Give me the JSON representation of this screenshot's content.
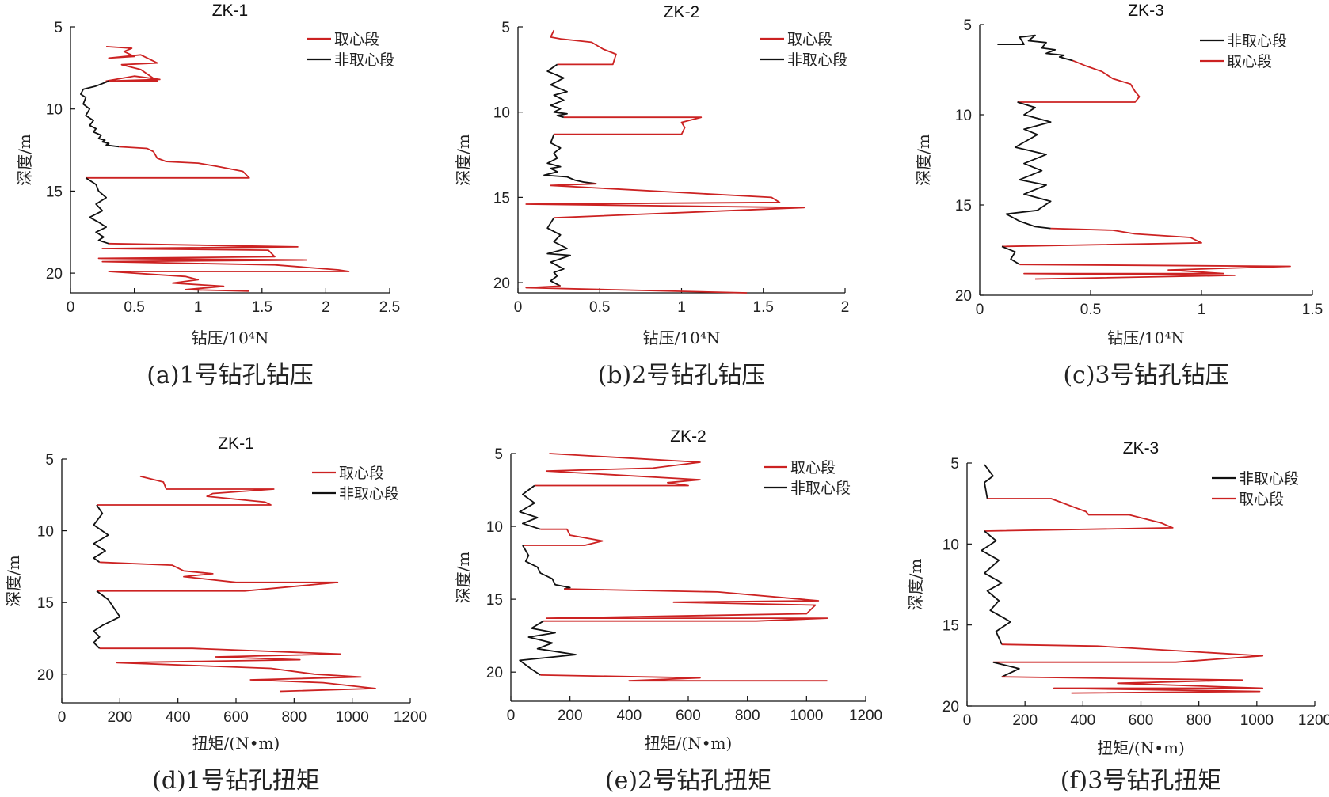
{
  "chart_data": [
    {
      "type": "line",
      "title": "ZK-1",
      "xlabel": "钻压/10⁴N",
      "ylabel": "深度/m",
      "caption": "(a)1号钻孔钻压",
      "xlim": [
        0,
        2.5
      ],
      "ylim": [
        5,
        21.2
      ],
      "xticks": [
        "0",
        "0.5",
        "1",
        "1.5",
        "2",
        "2.5"
      ],
      "yticks": [
        "5",
        "10",
        "15",
        "20"
      ],
      "legend": [
        "取心段",
        "非取心段"
      ],
      "series": [
        {
          "name": "取心段",
          "color": "#cc2222",
          "x": [
            0.28,
            0.48,
            0.42,
            0.5,
            0.3,
            0.55,
            0.68,
            0.4,
            0.55,
            0.68,
            0.28,
            0.5,
            0.7,
            0.3
          ],
          "y": [
            6.2,
            6.3,
            6.5,
            6.8,
            6.9,
            6.7,
            7.2,
            7.3,
            7.6,
            8.3,
            8.3,
            8.0,
            8.2,
            8.3
          ]
        },
        {
          "name": "非取心段",
          "color": "#111111",
          "x": [
            0.3,
            0.2,
            0.1,
            0.08,
            0.12,
            0.1,
            0.15,
            0.12,
            0.18,
            0.15,
            0.2,
            0.18,
            0.24,
            0.22,
            0.27,
            0.25,
            0.3,
            0.28,
            0.38
          ],
          "y": [
            8.3,
            8.6,
            8.8,
            9.1,
            9.3,
            9.7,
            10.0,
            10.4,
            10.7,
            11.0,
            11.2,
            11.4,
            11.6,
            11.8,
            11.9,
            12.0,
            12.1,
            12.2,
            12.3
          ]
        },
        {
          "name": "取心段",
          "color": "#cc2222",
          "x": [
            0.38,
            0.6,
            0.65,
            0.68,
            0.75,
            1.0,
            1.15,
            1.35,
            1.4,
            0.12
          ],
          "y": [
            12.3,
            12.4,
            12.6,
            13.0,
            13.2,
            13.3,
            13.5,
            13.8,
            14.2,
            14.2
          ]
        },
        {
          "name": "非取心段",
          "color": "#111111",
          "x": [
            0.12,
            0.2,
            0.22,
            0.28,
            0.2,
            0.25,
            0.15,
            0.22,
            0.28,
            0.2,
            0.26,
            0.22,
            0.3
          ],
          "y": [
            14.2,
            14.6,
            15.0,
            15.4,
            15.8,
            16.2,
            16.6,
            16.9,
            17.2,
            17.5,
            17.8,
            18.0,
            18.2
          ]
        },
        {
          "name": "取心段",
          "color": "#cc2222",
          "x": [
            0.3,
            1.78,
            0.25,
            1.55,
            1.6,
            0.22,
            1.85,
            0.25,
            1.6,
            2.1,
            2.18,
            0.3,
            0.9,
            1.0,
            0.8,
            1.2,
            0.9,
            1.4
          ],
          "y": [
            18.2,
            18.4,
            18.5,
            18.6,
            19.0,
            19.1,
            19.2,
            19.3,
            19.5,
            19.8,
            19.9,
            19.9,
            20.2,
            20.4,
            20.6,
            20.8,
            21.0,
            21.1
          ]
        }
      ]
    },
    {
      "type": "line",
      "title": "ZK-2",
      "xlabel": "钻压/10⁴N",
      "ylabel": "深度/m",
      "caption": "(b)2号钻孔钻压",
      "xlim": [
        0,
        2
      ],
      "ylim": [
        5,
        20.6
      ],
      "xticks": [
        "0",
        "0.5",
        "1",
        "1.5",
        "2"
      ],
      "yticks": [
        "5",
        "10",
        "15",
        "20"
      ],
      "legend": [
        "取心段",
        "非取心段"
      ],
      "series": [
        {
          "name": "取心段",
          "color": "#cc2222",
          "x": [
            0.22,
            0.2,
            0.26,
            0.45,
            0.52,
            0.6,
            0.58,
            0.24
          ],
          "y": [
            5.2,
            5.6,
            5.7,
            5.9,
            6.3,
            6.6,
            7.2,
            7.2
          ]
        },
        {
          "name": "非取心段",
          "color": "#111111",
          "x": [
            0.24,
            0.18,
            0.28,
            0.2,
            0.3,
            0.22,
            0.28,
            0.2,
            0.26,
            0.22,
            0.3,
            0.24,
            0.28
          ],
          "y": [
            7.2,
            7.6,
            8.0,
            8.4,
            8.8,
            9.0,
            9.3,
            9.6,
            9.8,
            10.0,
            10.1,
            10.2,
            10.3
          ]
        },
        {
          "name": "取心段",
          "color": "#cc2222",
          "x": [
            0.28,
            1.12,
            1.0,
            1.02,
            1.0,
            0.22
          ],
          "y": [
            10.3,
            10.3,
            10.6,
            10.9,
            11.3,
            11.3
          ]
        },
        {
          "name": "非取心段",
          "color": "#111111",
          "x": [
            0.22,
            0.2,
            0.26,
            0.22,
            0.24,
            0.18,
            0.26,
            0.2,
            0.24,
            0.16,
            0.3,
            0.35,
            0.4,
            0.48
          ],
          "y": [
            11.3,
            11.8,
            12.1,
            12.4,
            12.7,
            13.0,
            13.2,
            13.3,
            13.5,
            13.7,
            13.8,
            14.0,
            14.1,
            14.2
          ]
        },
        {
          "name": "取心段",
          "color": "#cc2222",
          "x": [
            0.48,
            0.2,
            1.55,
            1.6,
            0.05,
            1.75,
            0.22
          ],
          "y": [
            14.2,
            14.3,
            15.0,
            15.3,
            15.4,
            15.6,
            16.2
          ]
        },
        {
          "name": "非取心段",
          "color": "#111111",
          "x": [
            0.22,
            0.18,
            0.26,
            0.22,
            0.3,
            0.18,
            0.32,
            0.2,
            0.28,
            0.22,
            0.24,
            0.2,
            0.26
          ],
          "y": [
            16.2,
            16.8,
            17.2,
            17.6,
            18.0,
            18.3,
            18.4,
            18.8,
            19.2,
            19.4,
            19.6,
            19.9,
            20.2
          ]
        },
        {
          "name": "取心段",
          "color": "#cc2222",
          "x": [
            0.26,
            0.05,
            1.4
          ],
          "y": [
            20.2,
            20.3,
            20.6
          ]
        }
      ]
    },
    {
      "type": "line",
      "title": "ZK-3",
      "xlabel": "钻压/10⁴N",
      "ylabel": "深度/m",
      "caption": "(c)3号钻孔钻压",
      "xlim": [
        0,
        1.5
      ],
      "ylim": [
        5,
        20
      ],
      "xticks": [
        "0",
        "0.5",
        "1",
        "1.5"
      ],
      "yticks": [
        "5",
        "10",
        "15",
        "20"
      ],
      "legend": [
        "非取心段",
        "取心段"
      ],
      "series": [
        {
          "name": "非取心段",
          "color": "#111111",
          "x": [
            0.08,
            0.2,
            0.18,
            0.25,
            0.22,
            0.3,
            0.28,
            0.34,
            0.3,
            0.38,
            0.36,
            0.42
          ],
          "y": [
            6.1,
            6.1,
            5.7,
            5.6,
            5.9,
            6.0,
            6.3,
            6.4,
            6.6,
            6.7,
            6.8,
            7.0
          ]
        },
        {
          "name": "取心段",
          "color": "#cc2222",
          "x": [
            0.42,
            0.48,
            0.55,
            0.6,
            0.68,
            0.7,
            0.72,
            0.7,
            0.17
          ],
          "y": [
            7.0,
            7.3,
            7.6,
            8.0,
            8.3,
            8.7,
            9.0,
            9.3,
            9.3
          ]
        },
        {
          "name": "非取心段",
          "color": "#111111",
          "x": [
            0.17,
            0.25,
            0.2,
            0.32,
            0.2,
            0.26,
            0.16,
            0.3,
            0.2,
            0.28,
            0.18,
            0.3,
            0.2,
            0.32,
            0.26,
            0.12,
            0.18,
            0.25,
            0.32
          ],
          "y": [
            9.3,
            9.6,
            10.0,
            10.4,
            10.8,
            11.1,
            11.8,
            12.2,
            12.7,
            13.1,
            13.6,
            13.9,
            14.4,
            14.8,
            15.3,
            15.5,
            15.9,
            16.2,
            16.3
          ]
        },
        {
          "name": "取心段",
          "color": "#cc2222",
          "x": [
            0.32,
            0.6,
            0.7,
            0.95,
            1.0,
            0.1
          ],
          "y": [
            16.3,
            16.4,
            16.6,
            16.8,
            17.1,
            17.3
          ]
        },
        {
          "name": "非取心段",
          "color": "#111111",
          "x": [
            0.1,
            0.16,
            0.14,
            0.18
          ],
          "y": [
            17.3,
            17.6,
            18.0,
            18.3
          ]
        },
        {
          "name": "取心段",
          "color": "#cc2222",
          "x": [
            0.18,
            1.4,
            0.85,
            1.1,
            0.2,
            1.15,
            0.25
          ],
          "y": [
            18.3,
            18.4,
            18.6,
            18.8,
            18.8,
            18.9,
            19.1
          ]
        }
      ]
    },
    {
      "type": "line",
      "title": "ZK-1",
      "xlabel": "扭矩/(N•m)",
      "ylabel": "深度/m",
      "caption": "(d)1号钻孔扭矩",
      "xlim": [
        0,
        1200
      ],
      "ylim": [
        5,
        22
      ],
      "xticks": [
        "0",
        "200",
        "400",
        "600",
        "800",
        "1000",
        "1200"
      ],
      "yticks": [
        "5",
        "10",
        "15",
        "20"
      ],
      "legend": [
        "取心段",
        "非取心段"
      ],
      "series": [
        {
          "name": "取心段",
          "color": "#cc2222",
          "x": [
            270,
            350,
            360,
            730,
            520,
            500,
            700,
            720,
            120
          ],
          "y": [
            6.2,
            6.6,
            7.1,
            7.1,
            7.4,
            7.6,
            8.0,
            8.2,
            8.2
          ]
        },
        {
          "name": "非取心段",
          "color": "#111111",
          "x": [
            120,
            140,
            110,
            160,
            110,
            150,
            110,
            130
          ],
          "y": [
            8.2,
            8.8,
            9.6,
            10.3,
            10.9,
            11.4,
            11.9,
            12.2
          ]
        },
        {
          "name": "取心段",
          "color": "#cc2222",
          "x": [
            130,
            380,
            420,
            520,
            420,
            600,
            950,
            630,
            120
          ],
          "y": [
            12.2,
            12.4,
            12.8,
            13.0,
            13.2,
            13.6,
            13.6,
            14.2,
            14.2
          ]
        },
        {
          "name": "非取心段",
          "color": "#111111",
          "x": [
            120,
            160,
            200,
            140,
            110,
            130,
            110,
            130
          ],
          "y": [
            14.2,
            14.8,
            16.0,
            16.6,
            17.0,
            17.4,
            17.8,
            18.2
          ]
        },
        {
          "name": "取心段",
          "color": "#cc2222",
          "x": [
            130,
            450,
            960,
            530,
            820,
            190,
            720,
            870,
            1030,
            650,
            900,
            1080,
            750
          ],
          "y": [
            18.2,
            18.2,
            18.6,
            18.8,
            19.0,
            19.2,
            19.6,
            20.0,
            20.2,
            20.4,
            20.6,
            21.0,
            21.2
          ]
        }
      ]
    },
    {
      "type": "line",
      "title": "ZK-2",
      "xlabel": "扭矩/(N•m)",
      "ylabel": "深度/m",
      "caption": "(e)2号钻孔扭矩",
      "xlim": [
        0,
        1200
      ],
      "ylim": [
        5,
        22
      ],
      "xticks": [
        "0",
        "200",
        "400",
        "600",
        "800",
        "1000",
        "1200"
      ],
      "yticks": [
        "5",
        "10",
        "15",
        "20"
      ],
      "legend": [
        "取心段",
        "非取心段"
      ],
      "series": [
        {
          "name": "取心段",
          "color": "#cc2222",
          "x": [
            130,
            640,
            480,
            120,
            640,
            530,
            600,
            80
          ],
          "y": [
            5.0,
            5.6,
            6.0,
            6.2,
            6.8,
            7.0,
            7.2,
            7.2
          ]
        },
        {
          "name": "非取心段",
          "color": "#111111",
          "x": [
            80,
            40,
            80,
            30,
            90,
            40,
            100
          ],
          "y": [
            7.2,
            7.8,
            8.4,
            9.0,
            9.4,
            9.8,
            10.2
          ]
        },
        {
          "name": "取心段",
          "color": "#cc2222",
          "x": [
            100,
            190,
            200,
            310,
            250,
            40
          ],
          "y": [
            10.2,
            10.2,
            10.6,
            11.0,
            11.3,
            11.3
          ]
        },
        {
          "name": "非取心段",
          "color": "#111111",
          "x": [
            40,
            60,
            50,
            90,
            100,
            140,
            150,
            200,
            180
          ],
          "y": [
            11.3,
            12.0,
            12.4,
            12.8,
            13.2,
            13.6,
            14.0,
            14.2,
            14.3
          ]
        },
        {
          "name": "取心段",
          "color": "#cc2222",
          "x": [
            180,
            700,
            1040,
            550,
            1030,
            1000,
            120,
            1070,
            830,
            110
          ],
          "y": [
            14.3,
            14.5,
            15.1,
            15.2,
            15.4,
            16.0,
            16.3,
            16.3,
            16.5,
            16.5
          ]
        },
        {
          "name": "非取心段",
          "color": "#111111",
          "x": [
            110,
            70,
            150,
            60,
            140,
            90,
            220,
            30,
            70,
            100
          ],
          "y": [
            16.5,
            17.0,
            17.3,
            17.6,
            18.0,
            18.4,
            18.8,
            19.2,
            19.8,
            20.2
          ]
        },
        {
          "name": "取心段",
          "color": "#cc2222",
          "x": [
            100,
            640,
            400,
            1070
          ],
          "y": [
            20.2,
            20.4,
            20.6,
            20.6
          ]
        }
      ]
    },
    {
      "type": "line",
      "title": "ZK-3",
      "xlabel": "扭矩/(N•m)",
      "ylabel": "深度/m",
      "caption": "(f)3号钻孔扭矩",
      "xlim": [
        0,
        1200
      ],
      "ylim": [
        5,
        20
      ],
      "xticks": [
        "0",
        "200",
        "400",
        "600",
        "800",
        "1000",
        "1200"
      ],
      "yticks": [
        "5",
        "10",
        "15",
        "20"
      ],
      "legend": [
        "非取心段",
        "取心段"
      ],
      "series": [
        {
          "name": "非取心段",
          "color": "#111111",
          "x": [
            60,
            90,
            60,
            70
          ],
          "y": [
            5.1,
            5.8,
            6.2,
            7.2
          ]
        },
        {
          "name": "取心段",
          "color": "#cc2222",
          "x": [
            70,
            290,
            380,
            410,
            420,
            560,
            670,
            710,
            60
          ],
          "y": [
            7.2,
            7.2,
            7.8,
            8.0,
            8.2,
            8.2,
            8.7,
            9.0,
            9.2
          ]
        },
        {
          "name": "非取心段",
          "color": "#111111",
          "x": [
            60,
            100,
            50,
            110,
            60,
            120,
            70,
            110,
            80,
            150,
            100,
            120
          ],
          "y": [
            9.2,
            9.8,
            10.4,
            11.0,
            11.8,
            12.4,
            12.9,
            13.5,
            14.1,
            14.8,
            15.4,
            16.2
          ]
        },
        {
          "name": "取心段",
          "color": "#cc2222",
          "x": [
            120,
            450,
            1020,
            720,
            90
          ],
          "y": [
            16.2,
            16.3,
            16.9,
            17.3,
            17.3
          ]
        },
        {
          "name": "非取心段",
          "color": "#111111",
          "x": [
            90,
            180,
            120
          ],
          "y": [
            17.3,
            17.7,
            18.2
          ]
        },
        {
          "name": "取心段",
          "color": "#cc2222",
          "x": [
            120,
            950,
            520,
            1020,
            300,
            1010,
            360
          ],
          "y": [
            18.2,
            18.4,
            18.6,
            18.9,
            18.9,
            19.1,
            19.2
          ]
        }
      ]
    }
  ]
}
